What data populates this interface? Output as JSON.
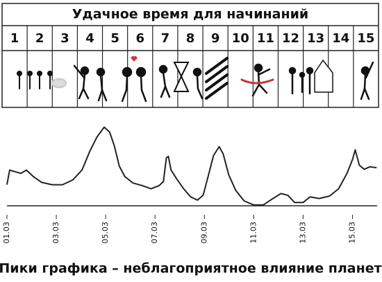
{
  "table": {
    "title": "Удачное время для начинаний",
    "columns": [
      "1",
      "2",
      "3",
      "4",
      "5",
      "6",
      "7",
      "8",
      "9",
      "10",
      "11",
      "12",
      "13",
      "14",
      "15"
    ]
  },
  "chart_data": {
    "type": "line",
    "caption": "Пики графика – неблагоприятное влияние планет",
    "x": [
      1,
      1.11,
      1.34,
      1.56,
      1.79,
      2.07,
      2.4,
      2.83,
      3.25,
      3.67,
      4.04,
      4.37,
      4.65,
      4.94,
      5.16,
      5.35,
      5.55,
      5.78,
      6.11,
      6.48,
      6.84,
      7.17,
      7.34,
      7.46,
      7.54,
      7.65,
      7.88,
      8.16,
      8.44,
      8.72,
      8.95,
      9.15,
      9.37,
      9.6,
      9.76,
      9.99,
      10.27,
      10.61,
      11,
      11.39,
      11.73,
      12.1,
      12.38,
      12.66,
      13,
      13.28,
      13.65,
      14.07,
      14.44,
      14.78,
      15,
      15.11,
      15.28,
      15.48,
      15.7,
      15.98
    ],
    "values": [
      26,
      44,
      42,
      40,
      44,
      36,
      29,
      26,
      26,
      32,
      44,
      68,
      85,
      97,
      91,
      74,
      49,
      36,
      28,
      25,
      21,
      25,
      30,
      59,
      61,
      44,
      33,
      21,
      11,
      7,
      13,
      36,
      62,
      73,
      64,
      38,
      19,
      6,
      1,
      1,
      8,
      15,
      13,
      4,
      4,
      11,
      9,
      12,
      21,
      40,
      57,
      69,
      50,
      45,
      48,
      47
    ],
    "color": "#222222",
    "xlim": [
      1,
      16
    ],
    "ylim": [
      0,
      100
    ],
    "xticks": [
      {
        "value": 1,
        "label": "01.03"
      },
      {
        "value": 3,
        "label": "03.03"
      },
      {
        "value": 5,
        "label": "05.03"
      },
      {
        "value": 7,
        "label": "07.03"
      },
      {
        "value": 9,
        "label": "09.03"
      },
      {
        "value": 11,
        "label": "11.03"
      },
      {
        "value": 13,
        "label": "13.03"
      },
      {
        "value": 15,
        "label": "15.03"
      }
    ],
    "grid": false
  }
}
